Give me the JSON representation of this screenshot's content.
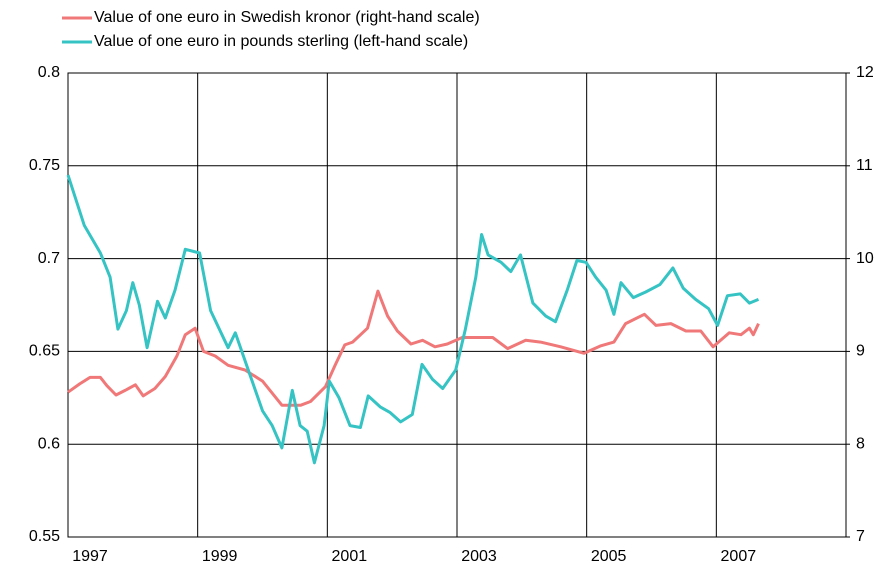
{
  "chart_data": {
    "type": "line",
    "xlim": [
      1997,
      2009
    ],
    "xticks": [
      1997,
      1999,
      2001,
      2003,
      2005,
      2007
    ],
    "ylim": [
      0.55,
      0.8
    ],
    "yticks": [
      0.55,
      0.6,
      0.65,
      0.7,
      0.75,
      0.8
    ],
    "y2lim": [
      7,
      12
    ],
    "y2ticks": [
      7,
      8,
      9,
      10,
      11,
      12
    ],
    "grid": true,
    "legend": "top-left",
    "series": [
      {
        "name": "Value of one euro in Swedish kronor (right-hand scale)",
        "color": "#f07878",
        "axis": "y2",
        "x": [
          1997.0,
          1997.18,
          1997.34,
          1997.5,
          1997.6,
          1997.74,
          1997.88,
          1998.04,
          1998.16,
          1998.34,
          1998.5,
          1998.68,
          1998.81,
          1998.96,
          1999.09,
          1999.27,
          1999.47,
          1999.73,
          2000.0,
          2000.3,
          2000.59,
          2000.74,
          2000.97,
          2001.12,
          2001.27,
          2001.39,
          2001.62,
          2001.78,
          2001.93,
          2002.08,
          2002.29,
          2002.47,
          2002.66,
          2002.85,
          2003.08,
          2003.36,
          2003.55,
          2003.78,
          2004.06,
          2004.29,
          2004.6,
          2004.96,
          2005.22,
          2005.42,
          2005.6,
          2005.89,
          2006.07,
          2006.3,
          2006.53,
          2006.76,
          2006.95,
          2007.2,
          2007.38,
          2007.51,
          2007.57,
          2007.65
        ],
        "values": [
          8.56,
          8.65,
          8.72,
          8.72,
          8.63,
          8.53,
          8.58,
          8.64,
          8.52,
          8.6,
          8.73,
          8.95,
          9.18,
          9.25,
          9.0,
          8.95,
          8.85,
          8.8,
          8.68,
          8.42,
          8.42,
          8.46,
          8.62,
          8.85,
          9.07,
          9.1,
          9.25,
          9.65,
          9.38,
          9.22,
          9.08,
          9.12,
          9.05,
          9.08,
          9.15,
          9.15,
          9.15,
          9.03,
          9.12,
          9.1,
          9.05,
          8.98,
          9.06,
          9.1,
          9.3,
          9.4,
          9.28,
          9.3,
          9.22,
          9.22,
          9.05,
          9.2,
          9.18,
          9.25,
          9.18,
          9.3
        ]
      },
      {
        "name": "Value of one euro in pounds sterling (left-hand scale)",
        "color": "#35c3c3",
        "x": [
          1997.0,
          1997.25,
          1997.5,
          1997.65,
          1997.77,
          1997.9,
          1998.0,
          1998.1,
          1998.22,
          1998.38,
          1998.5,
          1998.65,
          1998.81,
          1999.03,
          1999.2,
          1999.47,
          1999.58,
          1999.7,
          1999.83,
          2000.0,
          2000.15,
          2000.3,
          2000.46,
          2000.58,
          2000.69,
          2000.8,
          2000.95,
          2001.03,
          2001.18,
          2001.35,
          2001.51,
          2001.63,
          2001.82,
          2001.97,
          2002.13,
          2002.31,
          2002.46,
          2002.62,
          2002.78,
          2002.98,
          2003.13,
          2003.29,
          2003.38,
          2003.48,
          2003.68,
          2003.83,
          2003.98,
          2004.17,
          2004.37,
          2004.52,
          2004.7,
          2004.85,
          2004.99,
          2005.14,
          2005.3,
          2005.42,
          2005.53,
          2005.72,
          2005.91,
          2006.13,
          2006.33,
          2006.49,
          2006.68,
          2006.88,
          2007.02,
          2007.17,
          2007.37,
          2007.51,
          2007.65
        ],
        "values": [
          0.745,
          0.718,
          0.703,
          0.69,
          0.662,
          0.672,
          0.687,
          0.675,
          0.652,
          0.677,
          0.668,
          0.683,
          0.705,
          0.703,
          0.672,
          0.652,
          0.66,
          0.648,
          0.635,
          0.618,
          0.61,
          0.598,
          0.629,
          0.61,
          0.607,
          0.59,
          0.61,
          0.634,
          0.625,
          0.61,
          0.609,
          0.626,
          0.62,
          0.617,
          0.612,
          0.616,
          0.643,
          0.635,
          0.63,
          0.64,
          0.662,
          0.69,
          0.713,
          0.702,
          0.698,
          0.693,
          0.702,
          0.676,
          0.669,
          0.666,
          0.683,
          0.699,
          0.698,
          0.69,
          0.683,
          0.67,
          0.687,
          0.679,
          0.682,
          0.686,
          0.695,
          0.684,
          0.678,
          0.673,
          0.664,
          0.68,
          0.681,
          0.676,
          0.678
        ]
      }
    ]
  }
}
